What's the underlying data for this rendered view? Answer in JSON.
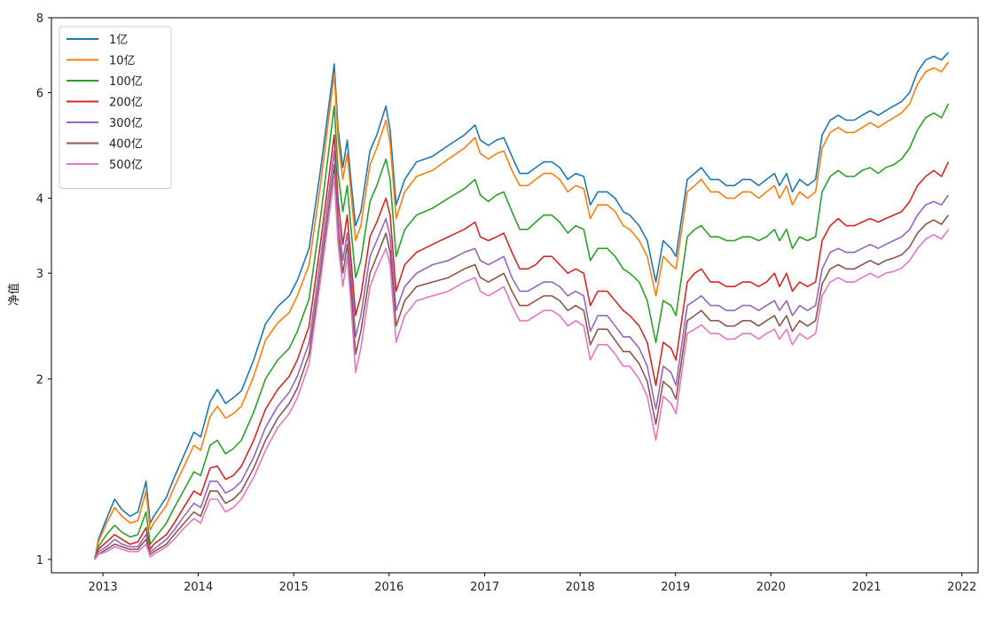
{
  "chart_data": {
    "type": "line",
    "title": "",
    "xlabel": "",
    "ylabel": "净值",
    "yscale": "log",
    "ylim": [
      0.95,
      8
    ],
    "xlim": [
      "2012-06-18",
      "2022-03-04"
    ],
    "yticks": [
      {
        "value": 1,
        "label": "1"
      },
      {
        "value": 2,
        "label": "2"
      },
      {
        "value": 3,
        "label": "3"
      },
      {
        "value": 4,
        "label": "4"
      },
      {
        "value": 6,
        "label": "6"
      },
      {
        "value": 8,
        "label": "8"
      }
    ],
    "xticks": [
      {
        "value": "2013-01-01",
        "label": "2013"
      },
      {
        "value": "2014-01-01",
        "label": "2014"
      },
      {
        "value": "2015-01-01",
        "label": "2015"
      },
      {
        "value": "2016-01-01",
        "label": "2016"
      },
      {
        "value": "2017-01-01",
        "label": "2017"
      },
      {
        "value": "2018-01-01",
        "label": "2018"
      },
      {
        "value": "2019-01-01",
        "label": "2019"
      },
      {
        "value": "2020-01-01",
        "label": "2020"
      },
      {
        "value": "2021-01-01",
        "label": "2021"
      },
      {
        "value": "2022-01-01",
        "label": "2022"
      }
    ],
    "legend": "upper-left",
    "grid": false,
    "x": [
      "2012-12-01",
      "2012-12-15",
      "2013-01-15",
      "2013-02-15",
      "2013-03-15",
      "2013-04-15",
      "2013-05-15",
      "2013-06-15",
      "2013-07-01",
      "2013-07-15",
      "2013-09-01",
      "2013-10-01",
      "2013-11-01",
      "2013-12-15",
      "2014-01-10",
      "2014-02-15",
      "2014-03-15",
      "2014-04-15",
      "2014-05-15",
      "2014-06-15",
      "2014-08-01",
      "2014-09-15",
      "2014-11-01",
      "2014-12-15",
      "2015-01-15",
      "2015-03-01",
      "2015-04-15",
      "2015-06-05",
      "2015-06-20",
      "2015-07-08",
      "2015-07-25",
      "2015-08-10",
      "2015-08-26",
      "2015-09-15",
      "2015-10-20",
      "2015-11-15",
      "2015-12-20",
      "2016-01-05",
      "2016-01-28",
      "2016-03-01",
      "2016-04-15",
      "2016-06-15",
      "2016-08-15",
      "2016-10-15",
      "2016-11-25",
      "2016-12-15",
      "2017-01-15",
      "2017-02-15",
      "2017-03-15",
      "2017-04-15",
      "2017-05-15",
      "2017-06-15",
      "2017-07-15",
      "2017-08-15",
      "2017-09-15",
      "2017-10-15",
      "2017-11-15",
      "2017-12-15",
      "2018-01-15",
      "2018-02-09",
      "2018-03-10",
      "2018-04-15",
      "2018-05-15",
      "2018-06-15",
      "2018-07-10",
      "2018-08-15",
      "2018-09-15",
      "2018-10-18",
      "2018-11-15",
      "2018-12-15",
      "2019-01-03",
      "2019-02-15",
      "2019-03-15",
      "2019-04-10",
      "2019-05-15",
      "2019-06-15",
      "2019-07-15",
      "2019-08-15",
      "2019-09-15",
      "2019-10-15",
      "2019-11-15",
      "2019-12-15",
      "2020-01-15",
      "2020-02-03",
      "2020-03-01",
      "2020-03-23",
      "2020-04-20",
      "2020-05-20",
      "2020-06-20",
      "2020-07-15",
      "2020-08-15",
      "2020-09-15",
      "2020-10-15",
      "2020-11-15",
      "2020-12-15",
      "2021-01-15",
      "2021-02-15",
      "2021-03-15",
      "2021-04-15",
      "2021-05-15",
      "2021-06-15",
      "2021-07-15",
      "2021-08-15",
      "2021-09-15",
      "2021-10-15",
      "2021-11-10"
    ],
    "series": [
      {
        "name": "1亿",
        "color": "#1f77b4",
        "values": [
          1.0,
          1.08,
          1.17,
          1.26,
          1.21,
          1.18,
          1.2,
          1.35,
          1.15,
          1.18,
          1.27,
          1.37,
          1.47,
          1.63,
          1.6,
          1.83,
          1.92,
          1.82,
          1.86,
          1.91,
          2.15,
          2.47,
          2.64,
          2.75,
          2.92,
          3.3,
          4.5,
          6.7,
          5.2,
          4.5,
          5.0,
          4.2,
          3.6,
          3.8,
          4.8,
          5.1,
          5.7,
          5.2,
          3.9,
          4.3,
          4.6,
          4.7,
          4.9,
          5.1,
          5.3,
          5.0,
          4.9,
          5.0,
          5.05,
          4.7,
          4.4,
          4.4,
          4.5,
          4.6,
          4.6,
          4.5,
          4.3,
          4.4,
          4.35,
          3.9,
          4.1,
          4.1,
          4.0,
          3.8,
          3.75,
          3.6,
          3.4,
          2.9,
          3.4,
          3.3,
          3.2,
          4.3,
          4.4,
          4.5,
          4.3,
          4.3,
          4.2,
          4.2,
          4.3,
          4.3,
          4.2,
          4.3,
          4.4,
          4.2,
          4.4,
          4.1,
          4.3,
          4.2,
          4.3,
          5.1,
          5.4,
          5.5,
          5.4,
          5.4,
          5.5,
          5.6,
          5.5,
          5.6,
          5.7,
          5.8,
          6.0,
          6.5,
          6.8,
          6.9,
          6.8,
          7.0
        ]
      },
      {
        "name": "10亿",
        "color": "#ff7f0e",
        "values": [
          1.0,
          1.07,
          1.15,
          1.22,
          1.18,
          1.15,
          1.16,
          1.3,
          1.12,
          1.15,
          1.23,
          1.32,
          1.41,
          1.55,
          1.52,
          1.73,
          1.8,
          1.72,
          1.75,
          1.8,
          2.02,
          2.32,
          2.48,
          2.58,
          2.75,
          3.1,
          4.25,
          6.45,
          5.0,
          4.3,
          4.75,
          4.0,
          3.4,
          3.6,
          4.55,
          4.85,
          5.4,
          4.95,
          3.7,
          4.1,
          4.35,
          4.45,
          4.65,
          4.85,
          5.05,
          4.75,
          4.65,
          4.75,
          4.8,
          4.45,
          4.2,
          4.2,
          4.3,
          4.4,
          4.4,
          4.3,
          4.1,
          4.2,
          4.15,
          3.7,
          3.9,
          3.9,
          3.8,
          3.6,
          3.55,
          3.4,
          3.2,
          2.75,
          3.2,
          3.1,
          3.05,
          4.1,
          4.2,
          4.3,
          4.1,
          4.1,
          4.0,
          4.0,
          4.1,
          4.1,
          4.0,
          4.1,
          4.2,
          4.0,
          4.2,
          3.9,
          4.1,
          4.0,
          4.1,
          4.85,
          5.15,
          5.25,
          5.15,
          5.15,
          5.25,
          5.35,
          5.25,
          5.35,
          5.45,
          5.55,
          5.75,
          6.2,
          6.5,
          6.6,
          6.5,
          6.75
        ]
      },
      {
        "name": "100亿",
        "color": "#2ca02c",
        "values": [
          1.0,
          1.05,
          1.1,
          1.14,
          1.11,
          1.09,
          1.1,
          1.2,
          1.06,
          1.08,
          1.15,
          1.22,
          1.29,
          1.4,
          1.38,
          1.55,
          1.58,
          1.5,
          1.53,
          1.58,
          1.76,
          2.0,
          2.15,
          2.25,
          2.4,
          2.72,
          3.75,
          5.7,
          4.4,
          3.8,
          4.2,
          3.5,
          2.95,
          3.15,
          3.95,
          4.2,
          4.65,
          4.3,
          3.2,
          3.55,
          3.75,
          3.85,
          4.0,
          4.15,
          4.3,
          4.05,
          3.95,
          4.05,
          4.1,
          3.8,
          3.55,
          3.55,
          3.65,
          3.75,
          3.75,
          3.65,
          3.5,
          3.6,
          3.55,
          3.15,
          3.3,
          3.3,
          3.2,
          3.05,
          3.0,
          2.9,
          2.7,
          2.3,
          2.7,
          2.65,
          2.55,
          3.45,
          3.55,
          3.6,
          3.45,
          3.45,
          3.4,
          3.4,
          3.45,
          3.45,
          3.4,
          3.45,
          3.55,
          3.4,
          3.55,
          3.3,
          3.45,
          3.4,
          3.45,
          4.1,
          4.35,
          4.45,
          4.35,
          4.35,
          4.45,
          4.5,
          4.4,
          4.5,
          4.55,
          4.65,
          4.85,
          5.2,
          5.45,
          5.55,
          5.45,
          5.75
        ]
      },
      {
        "name": "200亿",
        "color": "#d62728",
        "values": [
          1.0,
          1.04,
          1.07,
          1.1,
          1.08,
          1.06,
          1.07,
          1.13,
          1.04,
          1.06,
          1.1,
          1.15,
          1.21,
          1.3,
          1.28,
          1.42,
          1.43,
          1.36,
          1.38,
          1.43,
          1.58,
          1.78,
          1.92,
          2.02,
          2.15,
          2.45,
          3.4,
          5.1,
          3.95,
          3.35,
          3.75,
          3.1,
          2.55,
          2.75,
          3.45,
          3.65,
          4.0,
          3.75,
          2.8,
          3.1,
          3.25,
          3.35,
          3.45,
          3.55,
          3.65,
          3.45,
          3.4,
          3.45,
          3.5,
          3.25,
          3.05,
          3.05,
          3.1,
          3.2,
          3.2,
          3.1,
          3.0,
          3.05,
          3.0,
          2.65,
          2.8,
          2.8,
          2.7,
          2.6,
          2.55,
          2.45,
          2.3,
          1.95,
          2.3,
          2.25,
          2.15,
          2.9,
          3.0,
          3.05,
          2.9,
          2.9,
          2.85,
          2.85,
          2.9,
          2.9,
          2.85,
          2.9,
          3.0,
          2.85,
          3.0,
          2.8,
          2.9,
          2.85,
          2.9,
          3.4,
          3.6,
          3.7,
          3.6,
          3.6,
          3.65,
          3.7,
          3.65,
          3.7,
          3.75,
          3.8,
          3.95,
          4.2,
          4.35,
          4.45,
          4.35,
          4.6
        ]
      },
      {
        "name": "300亿",
        "color": "#9467bd",
        "values": [
          1.0,
          1.03,
          1.05,
          1.08,
          1.06,
          1.05,
          1.05,
          1.1,
          1.03,
          1.04,
          1.08,
          1.12,
          1.17,
          1.24,
          1.22,
          1.35,
          1.35,
          1.29,
          1.31,
          1.35,
          1.48,
          1.66,
          1.8,
          1.9,
          2.02,
          2.3,
          3.2,
          4.8,
          3.7,
          3.15,
          3.5,
          2.9,
          2.35,
          2.55,
          3.2,
          3.4,
          3.7,
          3.45,
          2.6,
          2.85,
          3.0,
          3.1,
          3.15,
          3.25,
          3.3,
          3.15,
          3.1,
          3.15,
          3.2,
          2.95,
          2.8,
          2.8,
          2.85,
          2.9,
          2.9,
          2.85,
          2.75,
          2.8,
          2.75,
          2.4,
          2.55,
          2.55,
          2.45,
          2.35,
          2.35,
          2.25,
          2.1,
          1.78,
          2.1,
          2.05,
          1.95,
          2.65,
          2.7,
          2.75,
          2.65,
          2.65,
          2.6,
          2.6,
          2.65,
          2.65,
          2.6,
          2.65,
          2.7,
          2.6,
          2.7,
          2.55,
          2.65,
          2.6,
          2.65,
          3.05,
          3.25,
          3.3,
          3.25,
          3.25,
          3.3,
          3.35,
          3.3,
          3.35,
          3.4,
          3.45,
          3.55,
          3.75,
          3.9,
          3.95,
          3.9,
          4.05
        ]
      },
      {
        "name": "400亿",
        "color": "#8c564b",
        "values": [
          1.0,
          1.02,
          1.04,
          1.06,
          1.05,
          1.04,
          1.04,
          1.08,
          1.02,
          1.03,
          1.06,
          1.1,
          1.14,
          1.2,
          1.18,
          1.3,
          1.3,
          1.24,
          1.26,
          1.3,
          1.42,
          1.58,
          1.72,
          1.82,
          1.93,
          2.2,
          3.05,
          4.55,
          3.5,
          3.0,
          3.35,
          2.75,
          2.2,
          2.4,
          3.0,
          3.2,
          3.5,
          3.25,
          2.45,
          2.7,
          2.85,
          2.9,
          2.95,
          3.05,
          3.1,
          2.95,
          2.9,
          2.95,
          3.0,
          2.8,
          2.65,
          2.65,
          2.7,
          2.75,
          2.75,
          2.7,
          2.6,
          2.65,
          2.6,
          2.28,
          2.42,
          2.42,
          2.32,
          2.22,
          2.22,
          2.12,
          1.98,
          1.68,
          1.98,
          1.93,
          1.85,
          2.5,
          2.55,
          2.6,
          2.5,
          2.5,
          2.45,
          2.45,
          2.5,
          2.5,
          2.45,
          2.5,
          2.55,
          2.45,
          2.55,
          2.4,
          2.5,
          2.45,
          2.5,
          2.88,
          3.05,
          3.1,
          3.05,
          3.05,
          3.1,
          3.15,
          3.1,
          3.15,
          3.18,
          3.22,
          3.32,
          3.5,
          3.62,
          3.68,
          3.62,
          3.75
        ]
      },
      {
        "name": "500亿",
        "color": "#e377c2",
        "values": [
          1.0,
          1.02,
          1.03,
          1.05,
          1.04,
          1.03,
          1.03,
          1.06,
          1.01,
          1.02,
          1.05,
          1.08,
          1.12,
          1.17,
          1.15,
          1.26,
          1.26,
          1.2,
          1.22,
          1.26,
          1.37,
          1.52,
          1.66,
          1.75,
          1.86,
          2.12,
          2.95,
          4.35,
          3.35,
          2.85,
          3.2,
          2.6,
          2.05,
          2.25,
          2.85,
          3.05,
          3.3,
          3.1,
          2.3,
          2.55,
          2.7,
          2.75,
          2.8,
          2.9,
          2.95,
          2.8,
          2.75,
          2.8,
          2.85,
          2.65,
          2.5,
          2.5,
          2.55,
          2.6,
          2.6,
          2.55,
          2.45,
          2.5,
          2.45,
          2.15,
          2.28,
          2.28,
          2.2,
          2.1,
          2.1,
          2.0,
          1.87,
          1.58,
          1.87,
          1.82,
          1.75,
          2.38,
          2.42,
          2.46,
          2.38,
          2.38,
          2.33,
          2.33,
          2.38,
          2.38,
          2.33,
          2.38,
          2.42,
          2.33,
          2.42,
          2.28,
          2.38,
          2.33,
          2.38,
          2.75,
          2.9,
          2.95,
          2.9,
          2.9,
          2.95,
          3.0,
          2.95,
          3.0,
          3.02,
          3.06,
          3.15,
          3.3,
          3.42,
          3.48,
          3.42,
          3.55
        ]
      }
    ]
  }
}
